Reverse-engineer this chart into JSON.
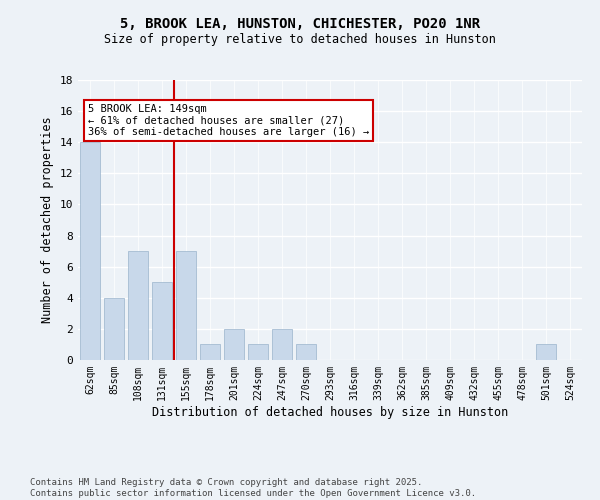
{
  "title1": "5, BROOK LEA, HUNSTON, CHICHESTER, PO20 1NR",
  "title2": "Size of property relative to detached houses in Hunston",
  "xlabel": "Distribution of detached houses by size in Hunston",
  "ylabel": "Number of detached properties",
  "bar_color": "#c8d8ea",
  "bar_edge_color": "#9ab4cc",
  "categories": [
    "62sqm",
    "85sqm",
    "108sqm",
    "131sqm",
    "155sqm",
    "178sqm",
    "201sqm",
    "224sqm",
    "247sqm",
    "270sqm",
    "293sqm",
    "316sqm",
    "339sqm",
    "362sqm",
    "385sqm",
    "409sqm",
    "432sqm",
    "455sqm",
    "478sqm",
    "501sqm",
    "524sqm"
  ],
  "values": [
    14,
    4,
    7,
    5,
    7,
    1,
    2,
    1,
    2,
    1,
    0,
    0,
    0,
    0,
    0,
    0,
    0,
    0,
    0,
    1,
    0
  ],
  "ylim": [
    0,
    18
  ],
  "yticks": [
    0,
    2,
    4,
    6,
    8,
    10,
    12,
    14,
    16,
    18
  ],
  "vline_x_index": 4,
  "vline_color": "#cc0000",
  "annotation_title": "5 BROOK LEA: 149sqm",
  "annotation_line1": "← 61% of detached houses are smaller (27)",
  "annotation_line2": "36% of semi-detached houses are larger (16) →",
  "footer_line1": "Contains HM Land Registry data © Crown copyright and database right 2025.",
  "footer_line2": "Contains public sector information licensed under the Open Government Licence v3.0.",
  "background_color": "#edf2f7",
  "grid_color": "#ffffff"
}
